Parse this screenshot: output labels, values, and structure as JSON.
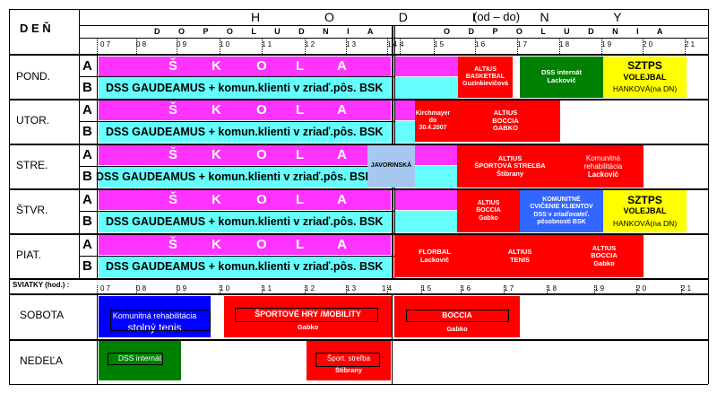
{
  "header": {
    "den": "D E Ň",
    "hodiny": "H O D I N Y",
    "hodiny_suffix": "(od – do)",
    "dopoludnia": "D O P O L U D N I A",
    "odpoludnia": "O D P O L U D N I A",
    "ticks_morning": [
      "0 7",
      "0 8",
      "0 9",
      "1 0",
      "1 1",
      "1 2",
      "1 3",
      "1 4"
    ],
    "ticks_afternoon": [
      "4",
      "1 5",
      "1 6",
      "1 7",
      "1 8",
      "1 9",
      "2 0",
      "2 1"
    ],
    "sviatky_label": "SVIATKY (hod.) :",
    "ticks_holiday": [
      "0 7",
      "0 8",
      "0 9",
      "1 0",
      "1 1",
      "1 2",
      "1 3",
      "1 4",
      "1 5",
      "1 6",
      "1 7",
      "1 8",
      "1 9",
      "2 0",
      "2 1"
    ]
  },
  "group_a": "A",
  "group_b": "B",
  "skola_letters": [
    "Š",
    "K",
    "O",
    "L",
    "A"
  ],
  "dss_text": "DSS GAUDEAMUS + komun.klienti v zriaď.pôs. BSK",
  "days": [
    {
      "name": "POND.",
      "events": [
        {
          "lines": [
            "ALTIUS",
            "BASKETBAL",
            "Guzinkievičová"
          ]
        },
        {
          "lines": [
            "DSS internát",
            "Lackovič"
          ]
        },
        {
          "lines": [
            "SZTPS",
            "VOLEJBAL",
            "HANKOVÁ(na DN)"
          ]
        }
      ]
    },
    {
      "name": "UTOR.",
      "events": [
        {
          "lines": [
            "Kirchmayer do",
            "30.4.2007"
          ]
        },
        {
          "lines": [
            "ALTIUS",
            "BOCCIA",
            "GABKO"
          ]
        }
      ]
    },
    {
      "name": "STRE.",
      "events": [
        {
          "lines": [
            "JAVORINSKÁ"
          ]
        },
        {
          "lines": [
            "ALTIUS",
            "ŠPORTOVÁ STREĽBA",
            "Štibrany"
          ]
        },
        {
          "lines": [
            "Komunitná",
            "rehabilitácia",
            "Lackovič"
          ]
        }
      ]
    },
    {
      "name": "ŠTVR.",
      "events": [
        {
          "lines": [
            "ALTIUS",
            "BOCCIA",
            "Gabko"
          ]
        },
        {
          "lines": [
            "KOMUNITNÉ",
            "CVIČENIE KLIENTOV",
            "DSS v zriaďovateľ.",
            "pôsobnosti BSK"
          ]
        },
        {
          "lines": [
            "SZTPS",
            "VOLEJBAL",
            "HANKOVÁ(na DN)"
          ]
        }
      ]
    },
    {
      "name": "PIAT.",
      "events": [
        {
          "lines": [
            "FLORBAL",
            "Lackovič"
          ]
        },
        {
          "lines": [
            "ALTIUS",
            "TENIS"
          ]
        },
        {
          "lines": [
            "ALTIUS",
            "BOCCIA",
            "Gabko"
          ]
        }
      ]
    }
  ],
  "weekend": [
    {
      "name": "SOBOTA",
      "events": [
        {
          "lines": [
            "Komunitná rehabilitácia",
            "stolný tenis"
          ]
        },
        {
          "lines": [
            "ŠPORTOVÉ HRY /MOBILITY",
            "Gabko"
          ]
        },
        {
          "lines": [
            "BOCCIA",
            "Gabko"
          ]
        }
      ]
    },
    {
      "name": "NEDEĽA",
      "events": [
        {
          "lines": [
            "DSS internát"
          ]
        },
        {
          "lines": [
            "Šport. streľba",
            "Štibrany"
          ]
        }
      ]
    }
  ],
  "colors": {
    "skola": "#ff33ff",
    "dss": "#66ffff",
    "altius": "#ff0000",
    "dss_internat": "#008000",
    "sztps": "#ffff00",
    "komunitne": "#3366ff",
    "javorinska": "#a6c8f0",
    "sobota_blue": "#0000ff"
  }
}
